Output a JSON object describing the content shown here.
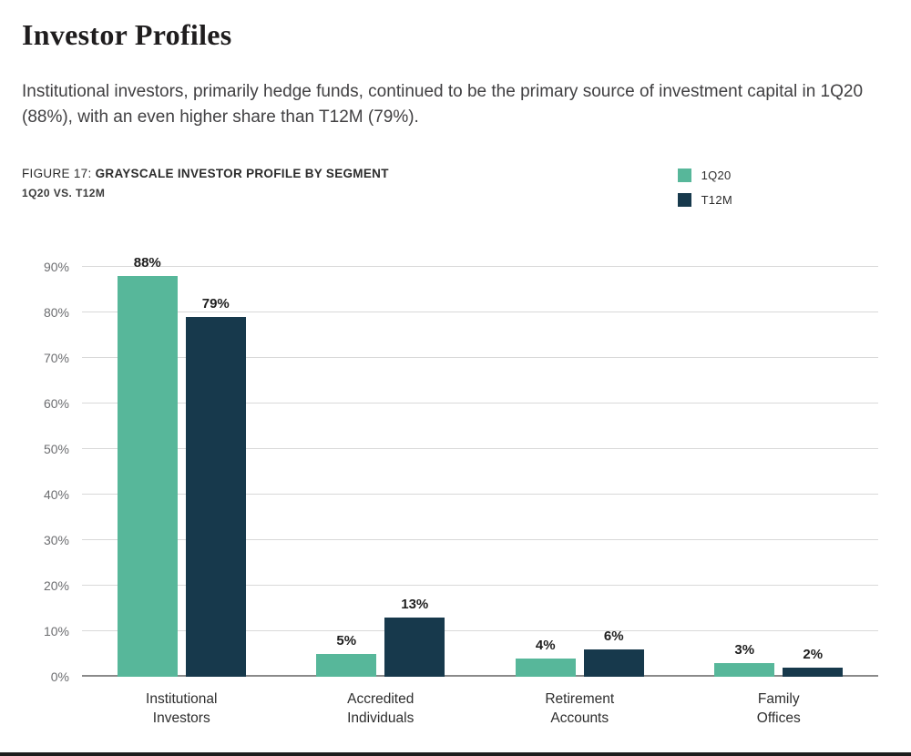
{
  "header": {
    "title": "Investor Profiles"
  },
  "intro": "Institutional investors, primarily hedge funds, continued to be the primary source of investment capital in 1Q20 (88%), with an even higher share than T12M (79%).",
  "figure": {
    "label": "FIGURE 17:",
    "title": "GRAYSCALE INVESTOR PROFILE BY SEGMENT",
    "subtitle": "1Q20 VS. T12M"
  },
  "chart_data": {
    "type": "bar",
    "categories": [
      "Institutional\nInvestors",
      "Accredited\nIndividuals",
      "Retirement\nAccounts",
      "Family\nOffices"
    ],
    "series": [
      {
        "name": "1Q20",
        "color": "#57b79a",
        "values": [
          88,
          5,
          4,
          3
        ]
      },
      {
        "name": "T12M",
        "color": "#17394c",
        "values": [
          79,
          13,
          6,
          2
        ]
      }
    ],
    "value_suffix": "%",
    "ylim": [
      0,
      90
    ],
    "ytick_step": 10,
    "grid": true,
    "legend_position": "top-right"
  }
}
